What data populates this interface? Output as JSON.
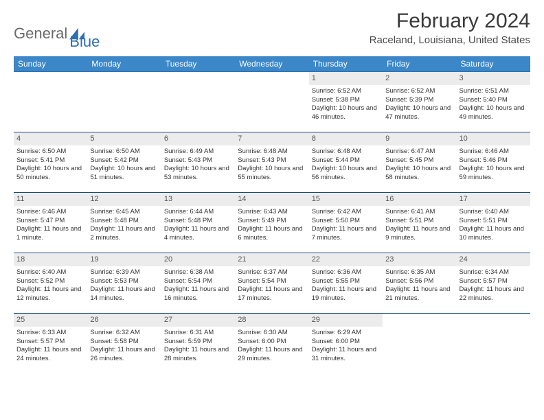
{
  "brand": {
    "part1": "General",
    "part2": "Blue"
  },
  "title": "February 2024",
  "location": "Raceland, Louisiana, United States",
  "colors": {
    "header_bg": "#3b87c8",
    "header_text": "#ffffff",
    "row_border": "#184a7a",
    "daynum_bg": "#ececec",
    "brand_gray": "#6a6a6a",
    "brand_blue": "#2f6fb0"
  },
  "weekdays": [
    "Sunday",
    "Monday",
    "Tuesday",
    "Wednesday",
    "Thursday",
    "Friday",
    "Saturday"
  ],
  "first_weekday_index": 4,
  "days": [
    {
      "n": 1,
      "sunrise": "6:52 AM",
      "sunset": "5:38 PM",
      "daylight": "10 hours and 46 minutes."
    },
    {
      "n": 2,
      "sunrise": "6:52 AM",
      "sunset": "5:39 PM",
      "daylight": "10 hours and 47 minutes."
    },
    {
      "n": 3,
      "sunrise": "6:51 AM",
      "sunset": "5:40 PM",
      "daylight": "10 hours and 49 minutes."
    },
    {
      "n": 4,
      "sunrise": "6:50 AM",
      "sunset": "5:41 PM",
      "daylight": "10 hours and 50 minutes."
    },
    {
      "n": 5,
      "sunrise": "6:50 AM",
      "sunset": "5:42 PM",
      "daylight": "10 hours and 51 minutes."
    },
    {
      "n": 6,
      "sunrise": "6:49 AM",
      "sunset": "5:43 PM",
      "daylight": "10 hours and 53 minutes."
    },
    {
      "n": 7,
      "sunrise": "6:48 AM",
      "sunset": "5:43 PM",
      "daylight": "10 hours and 55 minutes."
    },
    {
      "n": 8,
      "sunrise": "6:48 AM",
      "sunset": "5:44 PM",
      "daylight": "10 hours and 56 minutes."
    },
    {
      "n": 9,
      "sunrise": "6:47 AM",
      "sunset": "5:45 PM",
      "daylight": "10 hours and 58 minutes."
    },
    {
      "n": 10,
      "sunrise": "6:46 AM",
      "sunset": "5:46 PM",
      "daylight": "10 hours and 59 minutes."
    },
    {
      "n": 11,
      "sunrise": "6:46 AM",
      "sunset": "5:47 PM",
      "daylight": "11 hours and 1 minute."
    },
    {
      "n": 12,
      "sunrise": "6:45 AM",
      "sunset": "5:48 PM",
      "daylight": "11 hours and 2 minutes."
    },
    {
      "n": 13,
      "sunrise": "6:44 AM",
      "sunset": "5:48 PM",
      "daylight": "11 hours and 4 minutes."
    },
    {
      "n": 14,
      "sunrise": "6:43 AM",
      "sunset": "5:49 PM",
      "daylight": "11 hours and 6 minutes."
    },
    {
      "n": 15,
      "sunrise": "6:42 AM",
      "sunset": "5:50 PM",
      "daylight": "11 hours and 7 minutes."
    },
    {
      "n": 16,
      "sunrise": "6:41 AM",
      "sunset": "5:51 PM",
      "daylight": "11 hours and 9 minutes."
    },
    {
      "n": 17,
      "sunrise": "6:40 AM",
      "sunset": "5:51 PM",
      "daylight": "11 hours and 10 minutes."
    },
    {
      "n": 18,
      "sunrise": "6:40 AM",
      "sunset": "5:52 PM",
      "daylight": "11 hours and 12 minutes."
    },
    {
      "n": 19,
      "sunrise": "6:39 AM",
      "sunset": "5:53 PM",
      "daylight": "11 hours and 14 minutes."
    },
    {
      "n": 20,
      "sunrise": "6:38 AM",
      "sunset": "5:54 PM",
      "daylight": "11 hours and 16 minutes."
    },
    {
      "n": 21,
      "sunrise": "6:37 AM",
      "sunset": "5:54 PM",
      "daylight": "11 hours and 17 minutes."
    },
    {
      "n": 22,
      "sunrise": "6:36 AM",
      "sunset": "5:55 PM",
      "daylight": "11 hours and 19 minutes."
    },
    {
      "n": 23,
      "sunrise": "6:35 AM",
      "sunset": "5:56 PM",
      "daylight": "11 hours and 21 minutes."
    },
    {
      "n": 24,
      "sunrise": "6:34 AM",
      "sunset": "5:57 PM",
      "daylight": "11 hours and 22 minutes."
    },
    {
      "n": 25,
      "sunrise": "6:33 AM",
      "sunset": "5:57 PM",
      "daylight": "11 hours and 24 minutes."
    },
    {
      "n": 26,
      "sunrise": "6:32 AM",
      "sunset": "5:58 PM",
      "daylight": "11 hours and 26 minutes."
    },
    {
      "n": 27,
      "sunrise": "6:31 AM",
      "sunset": "5:59 PM",
      "daylight": "11 hours and 28 minutes."
    },
    {
      "n": 28,
      "sunrise": "6:30 AM",
      "sunset": "6:00 PM",
      "daylight": "11 hours and 29 minutes."
    },
    {
      "n": 29,
      "sunrise": "6:29 AM",
      "sunset": "6:00 PM",
      "daylight": "11 hours and 31 minutes."
    }
  ],
  "labels": {
    "sunrise": "Sunrise: ",
    "sunset": "Sunset: ",
    "daylight": "Daylight: "
  }
}
